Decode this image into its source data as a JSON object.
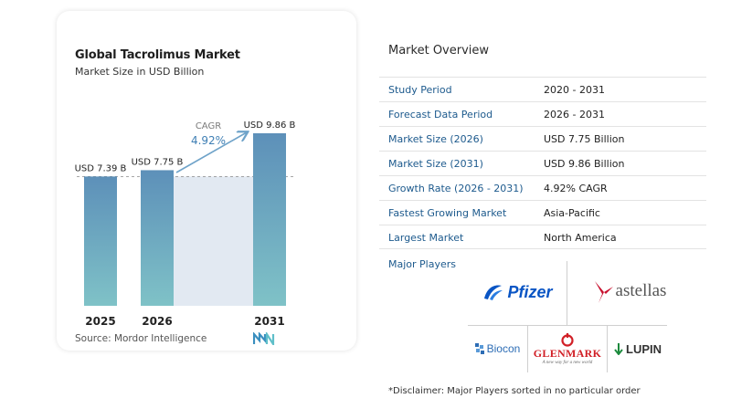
{
  "chart_data": {
    "type": "bar",
    "title": "Global Tacrolimus Market",
    "subtitle": "Market Size in USD Billion",
    "categories": [
      "2025",
      "2026",
      "2031"
    ],
    "values": [
      7.39,
      7.75,
      9.86
    ],
    "value_labels": [
      "USD 7.39 B",
      "USD 7.75 B",
      "USD 9.86 B"
    ],
    "cagr_label": "CAGR",
    "cagr_value": "4.92%",
    "source": "Source:  Mordor Intelligence",
    "colors": {
      "bar_top": "#5d90b9",
      "bar_bottom": "#7fc2c7",
      "band": "#e2e9f2",
      "arrow": "#6fa3c9",
      "cagr_value": "#3f7fb4"
    }
  },
  "overview": {
    "title": "Market Overview",
    "rows": [
      {
        "key": "Study Period",
        "value": "2020 - 2031"
      },
      {
        "key": "Forecast Data Period",
        "value": "2026 - 2031"
      },
      {
        "key": "Market Size (2026)",
        "value": "USD 7.75 Billion"
      },
      {
        "key": "Market Size (2031)",
        "value": "USD 9.86 Billion"
      },
      {
        "key": "Growth Rate (2026 - 2031)",
        "value": "4.92% CAGR"
      },
      {
        "key": "Fastest Growing Market",
        "value": "Asia-Pacific"
      },
      {
        "key": "Largest Market",
        "value": "North America"
      }
    ]
  },
  "players": {
    "title": "Major Players",
    "items": [
      {
        "name": "Pfizer",
        "icon": "pfizer-logo",
        "color": "#0a55c4"
      },
      {
        "name": "astellas",
        "icon": "astellas-logo",
        "color": "#c8102e"
      },
      {
        "name": "Biocon",
        "icon": "biocon-logo",
        "color": "#2d6db5"
      },
      {
        "name": "GLENMARK",
        "icon": "glenmark-logo",
        "color": "#d11f26",
        "tagline": "A new way for a new world"
      },
      {
        "name": "LUPIN",
        "icon": "lupin-logo",
        "color": "#1b8a3c"
      }
    ]
  },
  "disclaimer": "*Disclaimer: Major Players sorted in no particular order"
}
